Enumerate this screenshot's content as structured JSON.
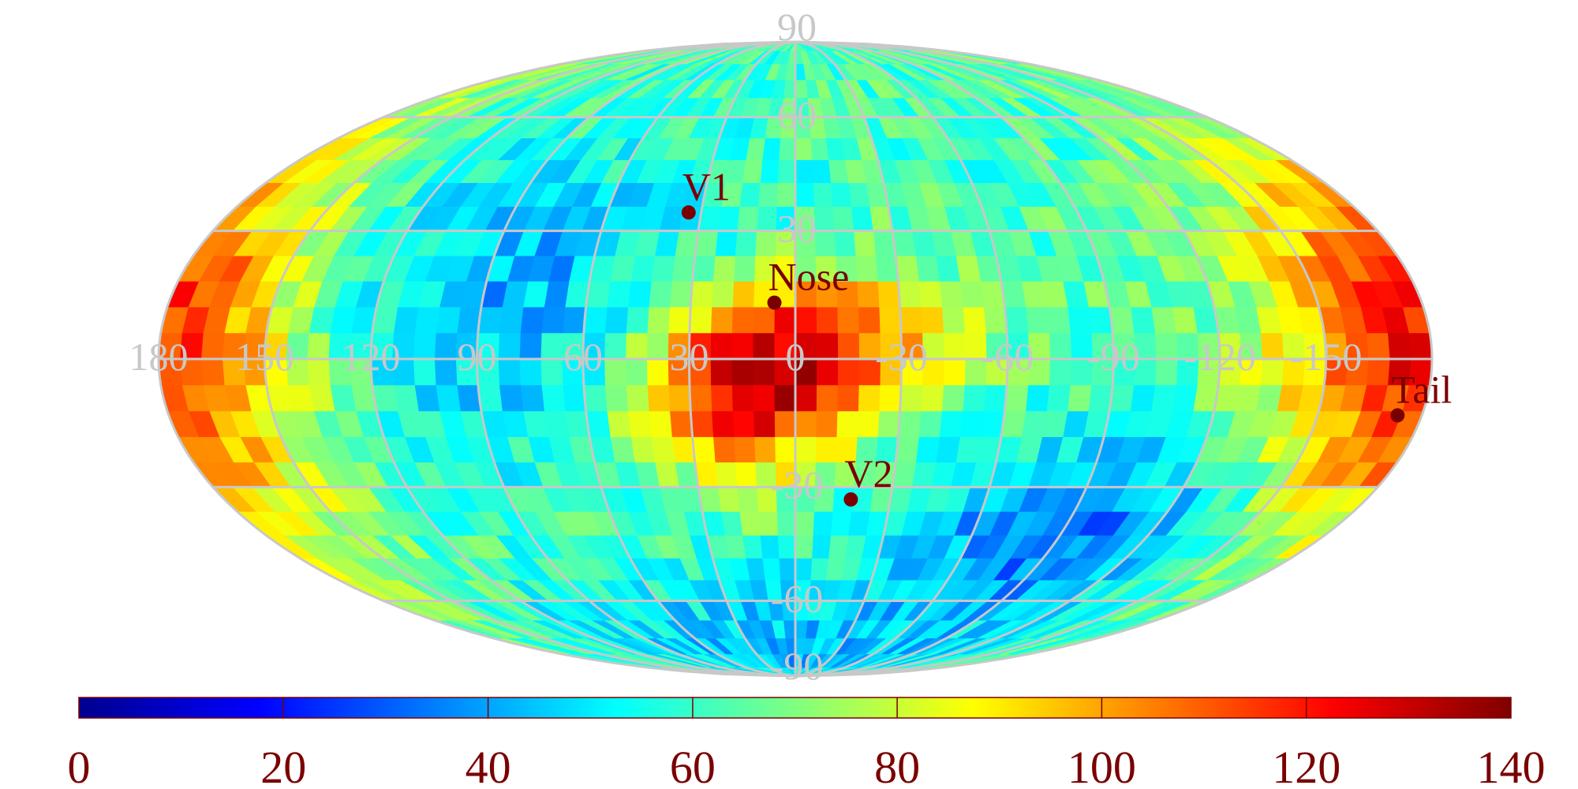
{
  "chart_data": {
    "type": "heatmap",
    "projection": "mollweide",
    "title": "",
    "xlabel": "",
    "ylabel": "",
    "grid": true,
    "lon_tick_labels": [
      "180",
      "150",
      "120",
      "90",
      "60",
      "30",
      "0",
      "-30",
      "-60",
      "-90",
      "-120",
      "-150"
    ],
    "lon_tick_values": [
      180,
      150,
      120,
      90,
      60,
      30,
      0,
      -30,
      -60,
      -90,
      -120,
      -150
    ],
    "lat_tick_labels": [
      "90",
      "60",
      "30",
      "-30",
      "-60",
      "-90"
    ],
    "lat_tick_values": [
      90,
      60,
      30,
      -30,
      -60,
      -90
    ],
    "colorbar": {
      "range": [
        0,
        140
      ],
      "tick_labels": [
        "0",
        "20",
        "40",
        "60",
        "80",
        "100",
        "120",
        "140"
      ],
      "tick_values": [
        0,
        20,
        40,
        60,
        80,
        100,
        120,
        140
      ],
      "colormap": "jet"
    },
    "features": [
      {
        "type": "hotspot",
        "lon": 15,
        "lat": -8,
        "sigma_lon": 22,
        "sigma_lat": 14,
        "amp": 60
      },
      {
        "type": "hotspot",
        "lon": -10,
        "lat": 5,
        "sigma_lon": 28,
        "sigma_lat": 12,
        "amp": 40
      },
      {
        "type": "hotspot",
        "lon": -178,
        "lat": 3,
        "sigma_lon": 30,
        "sigma_lat": 35,
        "amp": 60
      },
      {
        "type": "coldspot",
        "lon": -95,
        "lat": -40,
        "sigma_lon": 40,
        "sigma_lat": 15,
        "amp": -30
      },
      {
        "type": "coldspot",
        "lon": 85,
        "lat": 15,
        "sigma_lon": 45,
        "sigma_lat": 25,
        "amp": -20
      },
      {
        "type": "coldspot",
        "lon": 0,
        "lat": -75,
        "sigma_lon": 90,
        "sigma_lat": 15,
        "amp": -20
      }
    ],
    "background_value": 62,
    "markers": [
      {
        "label": "V1",
        "lon": 34.0,
        "lat": 34.5
      },
      {
        "label": "Nose",
        "lon": 6.0,
        "lat": 13.0
      },
      {
        "label": "V2",
        "lon": -17.5,
        "lat": -33.0
      },
      {
        "label": "Tail",
        "lon": -173.0,
        "lat": -13.0
      }
    ]
  },
  "colors": {
    "grid": "#c8c8c8",
    "tick_label": "#c8c8c8",
    "marker": "#7a0000",
    "colorbar_label": "#7a0000"
  }
}
